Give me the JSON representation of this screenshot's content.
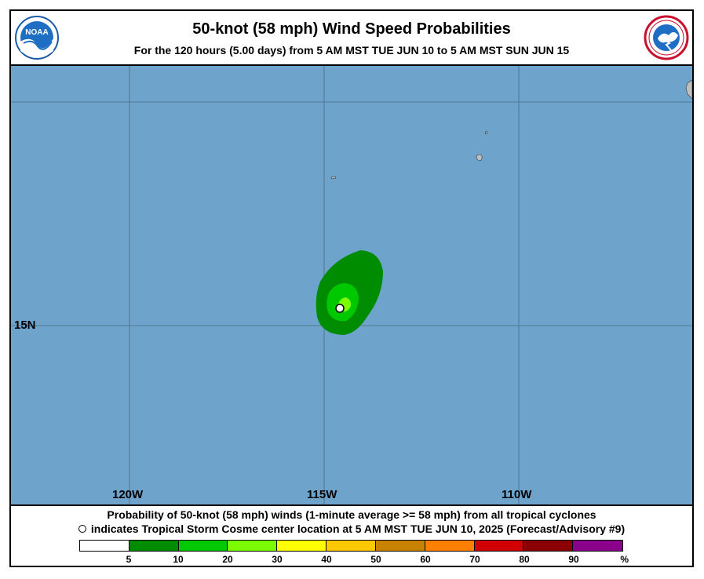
{
  "header": {
    "title": "50-knot (58 mph) Wind Speed Probabilities",
    "subtitle": "For the 120 hours (5.00 days) from 5 AM MST TUE JUN 10 to 5 AM MST SUN JUN 15",
    "left_logo": "noaa-logo",
    "right_logo": "national-weather-service-logo"
  },
  "map": {
    "ocean_color": "#6ea4cb",
    "land_color": "#bfbfbf",
    "lon_labels": [
      "120W",
      "115W",
      "110W"
    ],
    "lat_labels": [
      "15N"
    ],
    "storm_center_marker": "storm-center-circle"
  },
  "footer": {
    "line1": "Probability of 50-knot (58 mph) winds (1-minute average >= 58 mph) from all tropical cyclones",
    "line2": "indicates Tropical Storm Cosme center location at 5 AM MST TUE JUN 10, 2025 (Forecast/Advisory #9)"
  },
  "legend": {
    "colors": [
      "#ffffff",
      "#008c00",
      "#00c800",
      "#7cfc00",
      "#ffff00",
      "#ffc800",
      "#c88200",
      "#ff7f00",
      "#d10000",
      "#8b0000",
      "#8b008b"
    ],
    "labels": [
      "5",
      "10",
      "20",
      "30",
      "40",
      "50",
      "60",
      "70",
      "80",
      "90"
    ],
    "unit": "%"
  }
}
